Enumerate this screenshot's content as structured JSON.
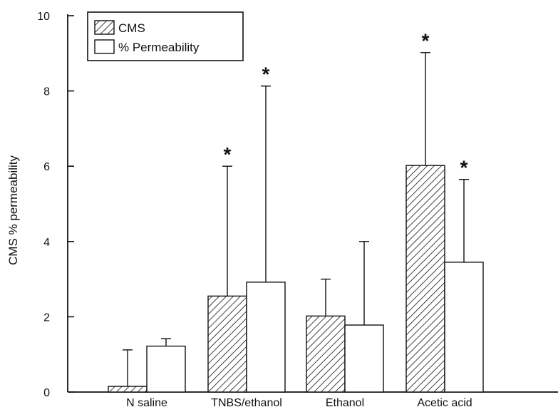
{
  "chart_data": {
    "type": "bar",
    "title": "",
    "xlabel": "",
    "ylabel": "CMS % permeability",
    "ylim": [
      0,
      10
    ],
    "yticks": [
      0,
      2,
      4,
      6,
      8,
      10
    ],
    "categories": [
      "N saline",
      "TNBS/ethanol",
      "Ethanol",
      "Acetic acid"
    ],
    "series": [
      {
        "name": "CMS",
        "pattern": "hatched",
        "values": [
          0.15,
          2.55,
          2.02,
          6.02
        ],
        "error_upper": [
          1.12,
          6.0,
          3.0,
          9.02
        ],
        "significant": [
          false,
          true,
          false,
          true
        ]
      },
      {
        "name": "% Permeability",
        "pattern": "open",
        "values": [
          1.22,
          2.92,
          1.78,
          3.45
        ],
        "error_upper": [
          1.42,
          8.13,
          4.0,
          5.65
        ],
        "significant": [
          false,
          true,
          false,
          true
        ]
      }
    ],
    "significance_marker": "*",
    "legend_position": "top-left",
    "grid": false
  }
}
